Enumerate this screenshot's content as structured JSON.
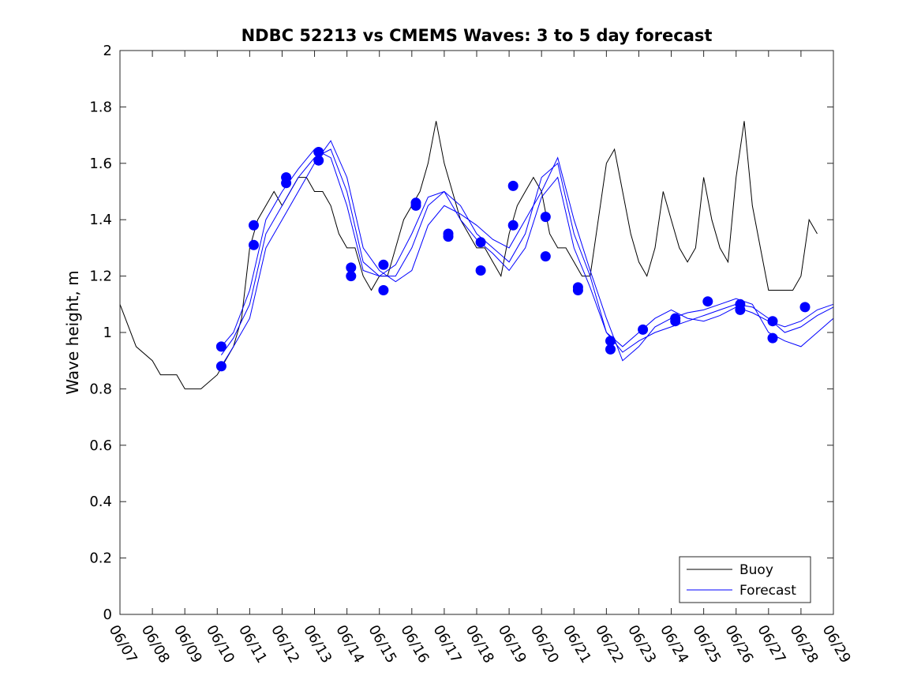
{
  "chart_data": {
    "type": "line",
    "title": "NDBC 52213 vs CMEMS Waves: 3 to 5 day forecast",
    "xlabel": "",
    "ylabel": "Wave height, m",
    "ylim": [
      0,
      2
    ],
    "yticks": [
      0,
      0.2,
      0.4,
      0.6,
      0.8,
      1,
      1.2,
      1.4,
      1.6,
      1.8,
      2
    ],
    "ytick_labels": [
      "0",
      "0.2",
      "0.4",
      "0.6",
      "0.8",
      "1",
      "1.2",
      "1.4",
      "1.6",
      "1.8",
      "2"
    ],
    "xlim": [
      "06/07",
      "06/29"
    ],
    "xtick_labels": [
      "06/07",
      "06/08",
      "06/09",
      "06/10",
      "06/11",
      "06/12",
      "06/13",
      "06/14",
      "06/15",
      "06/16",
      "06/17",
      "06/18",
      "06/19",
      "06/20",
      "06/21",
      "06/22",
      "06/23",
      "06/24",
      "06/25",
      "06/26",
      "06/27",
      "06/28",
      "06/29"
    ],
    "grid": false,
    "legend": {
      "position": "bottom-right",
      "entries": [
        "Buoy",
        "Forecast"
      ]
    },
    "colors": {
      "buoy": "#000000",
      "forecast": "#0000ff",
      "markers": "#0000ff"
    },
    "series": [
      {
        "name": "Buoy",
        "x": [
          "06/07",
          "06/07 12:00",
          "06/08",
          "06/08 06:00",
          "06/08 18:00",
          "06/09",
          "06/09 12:00",
          "06/10",
          "06/10 06:00",
          "06/10 12:00",
          "06/10 18:00",
          "06/11",
          "06/11 06:00",
          "06/11 12:00",
          "06/11 18:00",
          "06/12",
          "06/12 06:00",
          "06/12 12:00",
          "06/12 18:00",
          "06/13",
          "06/13 06:00",
          "06/13 12:00",
          "06/13 18:00",
          "06/14",
          "06/14 06:00",
          "06/14 12:00",
          "06/14 18:00",
          "06/15",
          "06/15 06:00",
          "06/15 12:00",
          "06/15 18:00",
          "06/16",
          "06/16 06:00",
          "06/16 12:00",
          "06/16 18:00",
          "06/17",
          "06/17 06:00",
          "06/17 12:00",
          "06/17 18:00",
          "06/18",
          "06/18 06:00",
          "06/18 12:00",
          "06/18 18:00",
          "06/19",
          "06/19 06:00",
          "06/19 12:00",
          "06/19 18:00",
          "06/20",
          "06/20 06:00",
          "06/20 12:00",
          "06/20 18:00",
          "06/21",
          "06/21 06:00",
          "06/21 12:00",
          "06/21 18:00",
          "06/22",
          "06/22 06:00",
          "06/22 12:00",
          "06/22 18:00",
          "06/23",
          "06/23 06:00",
          "06/23 12:00",
          "06/23 18:00",
          "06/24",
          "06/24 06:00",
          "06/24 12:00",
          "06/24 18:00",
          "06/25",
          "06/25 06:00",
          "06/25 12:00",
          "06/25 18:00",
          "06/26",
          "06/26 06:00",
          "06/26 12:00",
          "06/26 18:00",
          "06/27",
          "06/27 06:00",
          "06/27 12:00",
          "06/27 18:00",
          "06/28",
          "06/28 06:00",
          "06/28 12:00"
        ],
        "values": [
          1.1,
          0.95,
          0.9,
          0.85,
          0.85,
          0.8,
          0.8,
          0.85,
          0.9,
          0.95,
          1.05,
          1.3,
          1.4,
          1.45,
          1.5,
          1.45,
          1.5,
          1.55,
          1.55,
          1.5,
          1.5,
          1.45,
          1.35,
          1.3,
          1.3,
          1.2,
          1.15,
          1.2,
          1.2,
          1.3,
          1.4,
          1.45,
          1.5,
          1.6,
          1.75,
          1.6,
          1.5,
          1.4,
          1.35,
          1.3,
          1.3,
          1.25,
          1.2,
          1.35,
          1.45,
          1.5,
          1.55,
          1.5,
          1.35,
          1.3,
          1.3,
          1.25,
          1.2,
          1.2,
          1.4,
          1.6,
          1.65,
          1.5,
          1.35,
          1.25,
          1.2,
          1.3,
          1.5,
          1.4,
          1.3,
          1.25,
          1.3,
          1.55,
          1.4,
          1.3,
          1.25,
          1.55,
          1.75,
          1.45,
          1.3,
          1.15,
          1.15,
          1.15,
          1.15,
          1.2,
          1.4,
          1.35
        ]
      },
      {
        "name": "Forecast",
        "x": [
          "06/10 03:00",
          "06/10 12:00",
          "06/11",
          "06/11 12:00",
          "06/12",
          "06/12 12:00",
          "06/13",
          "06/13 12:00",
          "06/14",
          "06/14 12:00",
          "06/15",
          "06/15 12:00",
          "06/16",
          "06/16 12:00",
          "06/17",
          "06/17 12:00",
          "06/18",
          "06/18 12:00",
          "06/19",
          "06/19 12:00",
          "06/20",
          "06/20 12:00",
          "06/21",
          "06/21 12:00",
          "06/22",
          "06/22 12:00",
          "06/23",
          "06/23 12:00",
          "06/24",
          "06/24 12:00",
          "06/25",
          "06/25 12:00",
          "06/26",
          "06/26 12:00",
          "06/27",
          "06/27 12:00",
          "06/28",
          "06/28 12:00",
          "06/29"
        ],
        "values": [
          0.92,
          0.98,
          1.1,
          1.35,
          1.45,
          1.55,
          1.62,
          1.65,
          1.5,
          1.25,
          1.2,
          1.2,
          1.3,
          1.45,
          1.5,
          1.45,
          1.35,
          1.3,
          1.25,
          1.35,
          1.55,
          1.6,
          1.35,
          1.2,
          1.0,
          0.93,
          0.97,
          1.0,
          1.02,
          1.04,
          1.06,
          1.08,
          1.1,
          1.09,
          1.05,
          1.0,
          1.02,
          1.06,
          1.09
        ]
      },
      {
        "name": "Forecast",
        "x": [
          "06/10 03:00",
          "06/10 12:00",
          "06/11",
          "06/11 12:00",
          "06/12",
          "06/12 12:00",
          "06/13",
          "06/13 12:00",
          "06/14",
          "06/14 12:00",
          "06/15",
          "06/15 12:00",
          "06/16",
          "06/16 12:00",
          "06/17",
          "06/17 12:00",
          "06/18",
          "06/18 12:00",
          "06/19",
          "06/19 12:00",
          "06/20",
          "06/20 12:00",
          "06/21",
          "06/21 12:00",
          "06/22",
          "06/22 12:00",
          "06/23",
          "06/23 12:00",
          "06/24",
          "06/24 12:00",
          "06/25",
          "06/25 12:00",
          "06/26",
          "06/26 12:00",
          "06/27",
          "06/27 12:00",
          "06/28",
          "06/28 12:00",
          "06/29"
        ],
        "values": [
          0.88,
          0.95,
          1.05,
          1.3,
          1.4,
          1.5,
          1.6,
          1.68,
          1.55,
          1.3,
          1.22,
          1.18,
          1.22,
          1.38,
          1.45,
          1.42,
          1.38,
          1.33,
          1.3,
          1.4,
          1.5,
          1.62,
          1.4,
          1.22,
          1.05,
          0.9,
          0.95,
          1.02,
          1.05,
          1.07,
          1.08,
          1.1,
          1.12,
          1.1,
          1.0,
          0.97,
          0.95,
          1.0,
          1.05
        ]
      },
      {
        "name": "Forecast",
        "x": [
          "06/10 03:00",
          "06/10 12:00",
          "06/11",
          "06/11 12:00",
          "06/12",
          "06/12 12:00",
          "06/13",
          "06/13 12:00",
          "06/14",
          "06/14 12:00",
          "06/15",
          "06/15 12:00",
          "06/16",
          "06/16 12:00",
          "06/17",
          "06/17 12:00",
          "06/18",
          "06/18 12:00",
          "06/19",
          "06/19 12:00",
          "06/20",
          "06/20 12:00",
          "06/21",
          "06/21 12:00",
          "06/22",
          "06/22 12:00",
          "06/23",
          "06/23 12:00",
          "06/24",
          "06/24 12:00",
          "06/25",
          "06/25 12:00",
          "06/26",
          "06/26 12:00",
          "06/27",
          "06/27 12:00",
          "06/28",
          "06/28 12:00",
          "06/29"
        ],
        "values": [
          0.95,
          1.0,
          1.15,
          1.4,
          1.5,
          1.58,
          1.65,
          1.62,
          1.45,
          1.22,
          1.2,
          1.24,
          1.35,
          1.48,
          1.5,
          1.4,
          1.33,
          1.28,
          1.22,
          1.3,
          1.48,
          1.55,
          1.3,
          1.16,
          1.0,
          0.95,
          1.0,
          1.05,
          1.08,
          1.05,
          1.04,
          1.06,
          1.09,
          1.07,
          1.04,
          1.02,
          1.04,
          1.08,
          1.1
        ]
      }
    ],
    "markers": {
      "x": [
        "06/10 03:00",
        "06/10 03:00",
        "06/11 03:00",
        "06/11 03:00",
        "06/12 03:00",
        "06/12 03:00",
        "06/13 03:00",
        "06/13 03:00",
        "06/14 03:00",
        "06/14 03:00",
        "06/15 03:00",
        "06/15 03:00",
        "06/16 03:00",
        "06/16 03:00",
        "06/17 03:00",
        "06/17 03:00",
        "06/18 03:00",
        "06/18 03:00",
        "06/19 03:00",
        "06/19 03:00",
        "06/20 03:00",
        "06/20 03:00",
        "06/21 03:00",
        "06/21 03:00",
        "06/22 03:00",
        "06/22 03:00",
        "06/23 03:00",
        "06/24 03:00",
        "06/24 03:00",
        "06/25 03:00",
        "06/26 03:00",
        "06/26 03:00",
        "06/27 03:00",
        "06/27 03:00",
        "06/28 03:00"
      ],
      "values": [
        0.95,
        0.88,
        1.38,
        1.31,
        1.55,
        1.53,
        1.64,
        1.61,
        1.23,
        1.2,
        1.24,
        1.15,
        1.46,
        1.45,
        1.35,
        1.34,
        1.32,
        1.22,
        1.52,
        1.38,
        1.41,
        1.27,
        1.16,
        1.15,
        0.97,
        0.94,
        1.01,
        1.05,
        1.04,
        1.11,
        1.1,
        1.08,
        1.04,
        0.98,
        1.09
      ]
    }
  }
}
